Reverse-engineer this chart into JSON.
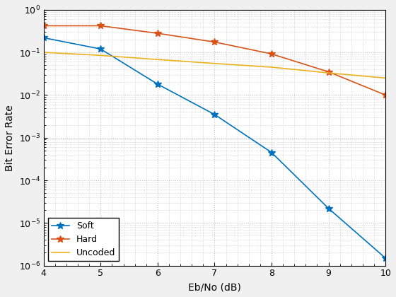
{
  "title": "",
  "xlabel": "Eb/No (dB)",
  "ylabel": "Bit Error Rate",
  "xlim": [
    4,
    10
  ],
  "ylim": [
    1e-06,
    1.0
  ],
  "soft_x": [
    4,
    5,
    6,
    7,
    8,
    9,
    10
  ],
  "soft_y": [
    0.22,
    0.12,
    0.018,
    0.0035,
    0.00045,
    2.2e-05,
    1.5e-06
  ],
  "hard_x": [
    4,
    5,
    6,
    7,
    8,
    9,
    10
  ],
  "hard_y": [
    0.42,
    0.42,
    0.28,
    0.175,
    0.092,
    0.035,
    0.01
  ],
  "uncoded_x": [
    4,
    5,
    6,
    7,
    8,
    9,
    10
  ],
  "uncoded_y": [
    0.1,
    0.085,
    0.068,
    0.055,
    0.045,
    0.033,
    0.025
  ],
  "soft_color": "#0072BD",
  "hard_color": "#D95319",
  "uncoded_color": "#EDB120",
  "legend_labels": [
    "Soft",
    "Hard",
    "Uncoded"
  ],
  "grid_color": "#C0C0C0",
  "bg_color": "#FFFFFF",
  "fig_bg_color": "#F0F0F0",
  "marker": "*",
  "linewidth": 1.2,
  "markersize": 7,
  "fontsize_ticks": 9,
  "fontsize_labels": 10,
  "fontsize_legend": 9
}
